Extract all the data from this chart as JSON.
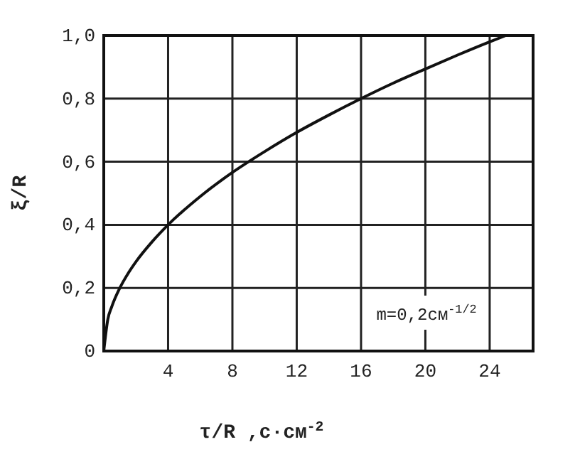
{
  "chart_data": {
    "type": "line",
    "xlabel": "τ/R ,с·см$^{-2}$",
    "ylabel": "ξ/R",
    "x": [
      0,
      0.25,
      0.5,
      1,
      1.5,
      2,
      3,
      4,
      6,
      8,
      10,
      12,
      14,
      16,
      18,
      20,
      22,
      24,
      25
    ],
    "series": [
      {
        "color": "#111111",
        "values": [
          0,
          0.1,
          0.141,
          0.2,
          0.245,
          0.283,
          0.346,
          0.4,
          0.49,
          0.566,
          0.632,
          0.693,
          0.748,
          0.8,
          0.849,
          0.894,
          0.938,
          0.98,
          1.0
        ]
      }
    ],
    "xlim": [
      0,
      26.7
    ],
    "ylim": [
      0,
      1
    ],
    "xticks": [
      4,
      8,
      12,
      16,
      20,
      24
    ],
    "yticks": [
      0,
      {
        "value": 0.2,
        "label": "0,2"
      },
      {
        "value": 0.4,
        "label": "0,4"
      },
      {
        "value": 0.6,
        "label": "0,6"
      },
      {
        "value": 0.8,
        "label": "0,8"
      },
      {
        "value": 1,
        "label": "1,0"
      }
    ],
    "grid": true,
    "marker": "none",
    "line_style": "solid",
    "annotations": [
      "m=0,2см$^{-1/2}$"
    ]
  }
}
